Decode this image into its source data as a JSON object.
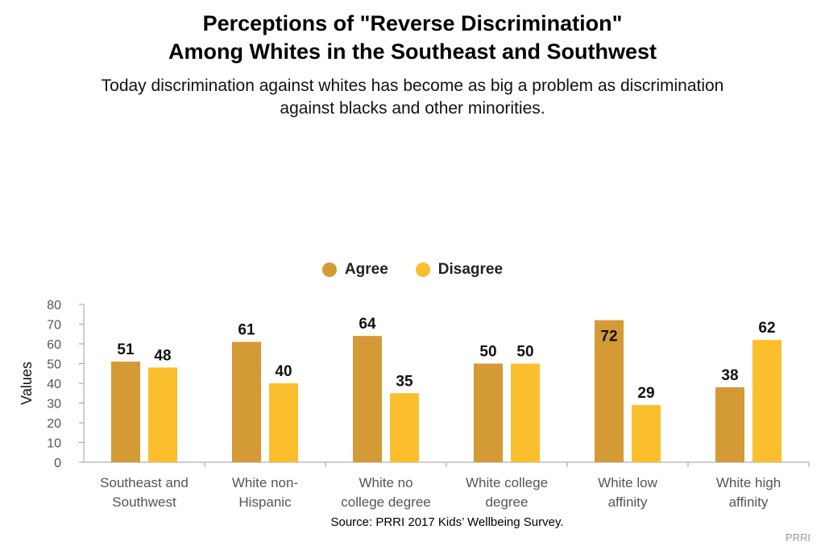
{
  "title_line1": "Perceptions of \"Reverse Discrimination\"",
  "title_line2": "Among Whites in the Southeast and Southwest",
  "subtitle_line1": "Today discrimination against whites has become as big a problem as discrimination",
  "subtitle_line2": "against blacks and other minorities.",
  "source": "Source: PRRI 2017 Kids’ Wellbeing Survey.",
  "brand": "PRRI",
  "colors": {
    "agree": "#D39A35",
    "disagree": "#FBBF2E",
    "axis": "#9e9e9e",
    "tick_text": "#555555"
  },
  "chart_data": {
    "type": "bar",
    "categories": [
      [
        "Southeast and",
        "Southwest"
      ],
      [
        "White non-",
        "Hispanic"
      ],
      [
        "White no",
        "college degree"
      ],
      [
        "White college",
        "degree"
      ],
      [
        "White low",
        "affinity"
      ],
      [
        "White high",
        "affinity"
      ]
    ],
    "series": [
      {
        "name": "Agree",
        "values": [
          51,
          61,
          64,
          50,
          72,
          38
        ]
      },
      {
        "name": "Disagree",
        "values": [
          48,
          40,
          35,
          50,
          29,
          62
        ]
      }
    ],
    "ylabel": "Values",
    "ylim": [
      0,
      80
    ],
    "yticks": [
      0,
      10,
      20,
      30,
      40,
      50,
      60,
      70,
      80
    ],
    "legend_position": "top-center",
    "grid": false
  }
}
